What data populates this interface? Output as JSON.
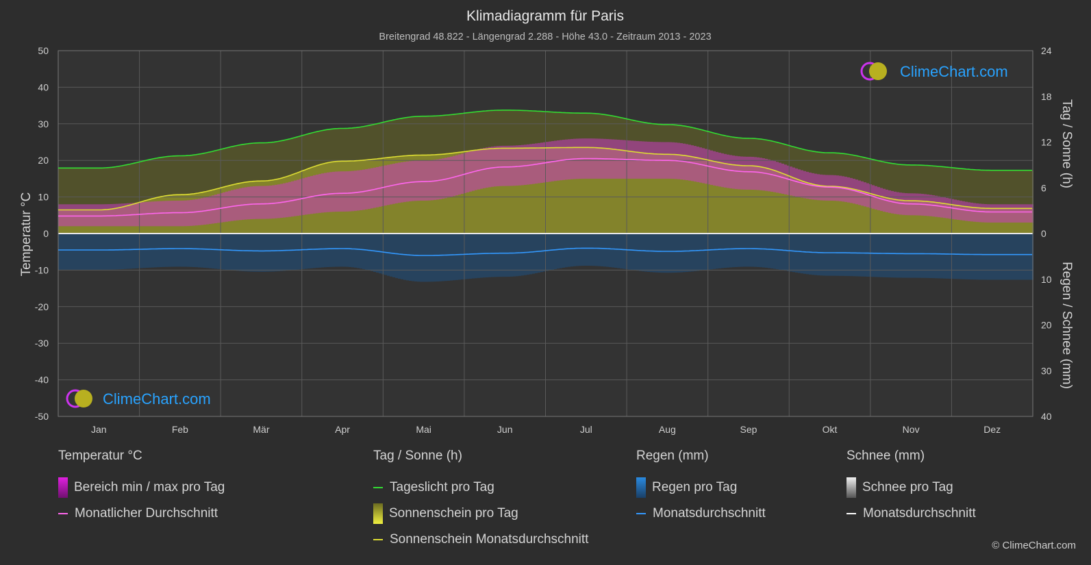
{
  "chart_data": {
    "type": "line",
    "title": "Klimadiagramm für Paris",
    "subtitle": "Breitengrad 48.822 - Längengrad 2.288 - Höhe 43.0 - Zeitraum 2013 - 2023",
    "categories": [
      "Jan",
      "Feb",
      "Mär",
      "Apr",
      "Mai",
      "Jun",
      "Jul",
      "Aug",
      "Sep",
      "Okt",
      "Nov",
      "Dez"
    ],
    "y_left": {
      "label": "Temperatur °C",
      "ylim": [
        -50,
        50
      ],
      "ticks": [
        "50",
        "40",
        "30",
        "20",
        "10",
        "0",
        "-10",
        "-20",
        "-30",
        "-40",
        "-50"
      ]
    },
    "y_right_top": {
      "label": "Tag / Sonne (h)",
      "ylim": [
        0,
        24
      ],
      "ticks": [
        "24",
        "18",
        "12",
        "6",
        "0"
      ]
    },
    "y_right_bottom": {
      "label": "Regen / Schnee (mm)",
      "ylim": [
        0,
        40
      ],
      "ticks": [
        "0",
        "10",
        "20",
        "30",
        "40"
      ]
    },
    "grid": true,
    "series": [
      {
        "name": "Tageslicht pro Tag",
        "axis": "sun_h",
        "color": "#33dd33",
        "values": [
          8.6,
          10.2,
          11.9,
          13.8,
          15.4,
          16.2,
          15.8,
          14.3,
          12.5,
          10.6,
          9.0,
          8.3
        ]
      },
      {
        "name": "Sonnenschein Monatsdurchschnitt",
        "axis": "sun_h",
        "color": "#dddd33",
        "values": [
          3.1,
          5.1,
          6.9,
          9.5,
          10.3,
          11.2,
          11.3,
          10.4,
          8.9,
          6.2,
          4.3,
          3.3
        ]
      },
      {
        "name": "Monatlicher Durchschnitt",
        "axis": "temp_c",
        "color": "#ff66ee",
        "values": [
          4.8,
          5.7,
          8.1,
          11.0,
          14.2,
          18.2,
          20.5,
          20.0,
          16.9,
          12.7,
          8.1,
          5.9
        ]
      },
      {
        "name": "Regen Monatsdurchschnitt",
        "axis": "precip_mm",
        "color": "#3399ff",
        "values": [
          3.6,
          3.3,
          3.8,
          3.3,
          4.8,
          4.3,
          3.2,
          3.9,
          3.3,
          4.2,
          4.4,
          4.6
        ]
      },
      {
        "name": "Schnee Monatsdurchschnitt",
        "axis": "precip_mm",
        "color": "#ffffff",
        "values": [
          0,
          0,
          0,
          0,
          0,
          0,
          0,
          0,
          0,
          0,
          0,
          0
        ]
      }
    ],
    "temp_range": {
      "name": "Bereich min / max pro Tag",
      "min": [
        2,
        2,
        4,
        6,
        9,
        13,
        15,
        15,
        12,
        9,
        5,
        3
      ],
      "max": [
        8,
        9,
        13,
        17,
        20,
        24,
        26,
        25,
        21,
        16,
        11,
        8
      ]
    }
  },
  "legend": {
    "groups": [
      {
        "title": "Temperatur °C",
        "items": [
          {
            "label": "Bereich min / max pro Tag",
            "kind": "box",
            "color": "#e020e0"
          },
          {
            "label": "Monatlicher Durchschnitt",
            "kind": "line",
            "color": "#ff66ee"
          }
        ]
      },
      {
        "title": "Tag / Sonne (h)",
        "items": [
          {
            "label": "Tageslicht pro Tag",
            "kind": "line",
            "color": "#33dd33"
          },
          {
            "label": "Sonnenschein pro Tag",
            "kind": "box",
            "color": "#dddd33"
          },
          {
            "label": "Sonnenschein Monatsdurchschnitt",
            "kind": "line",
            "color": "#dddd33"
          }
        ]
      },
      {
        "title": "Regen (mm)",
        "items": [
          {
            "label": "Regen pro Tag",
            "kind": "box",
            "color": "#2a8ae0"
          },
          {
            "label": "Monatsdurchschnitt",
            "kind": "line",
            "color": "#3399ff"
          }
        ]
      },
      {
        "title": "Schnee (mm)",
        "items": [
          {
            "label": "Schnee pro Tag",
            "kind": "box",
            "color": "#cccccc"
          },
          {
            "label": "Monatsdurchschnitt",
            "kind": "line",
            "color": "#ffffff"
          }
        ]
      }
    ]
  },
  "branding": {
    "logo_text": "ClimeChart.com",
    "copyright": "© ClimeChart.com"
  },
  "colors": {
    "background": "#2d2d2d",
    "grid": "#555555",
    "logo_text": "#29a3ff"
  }
}
